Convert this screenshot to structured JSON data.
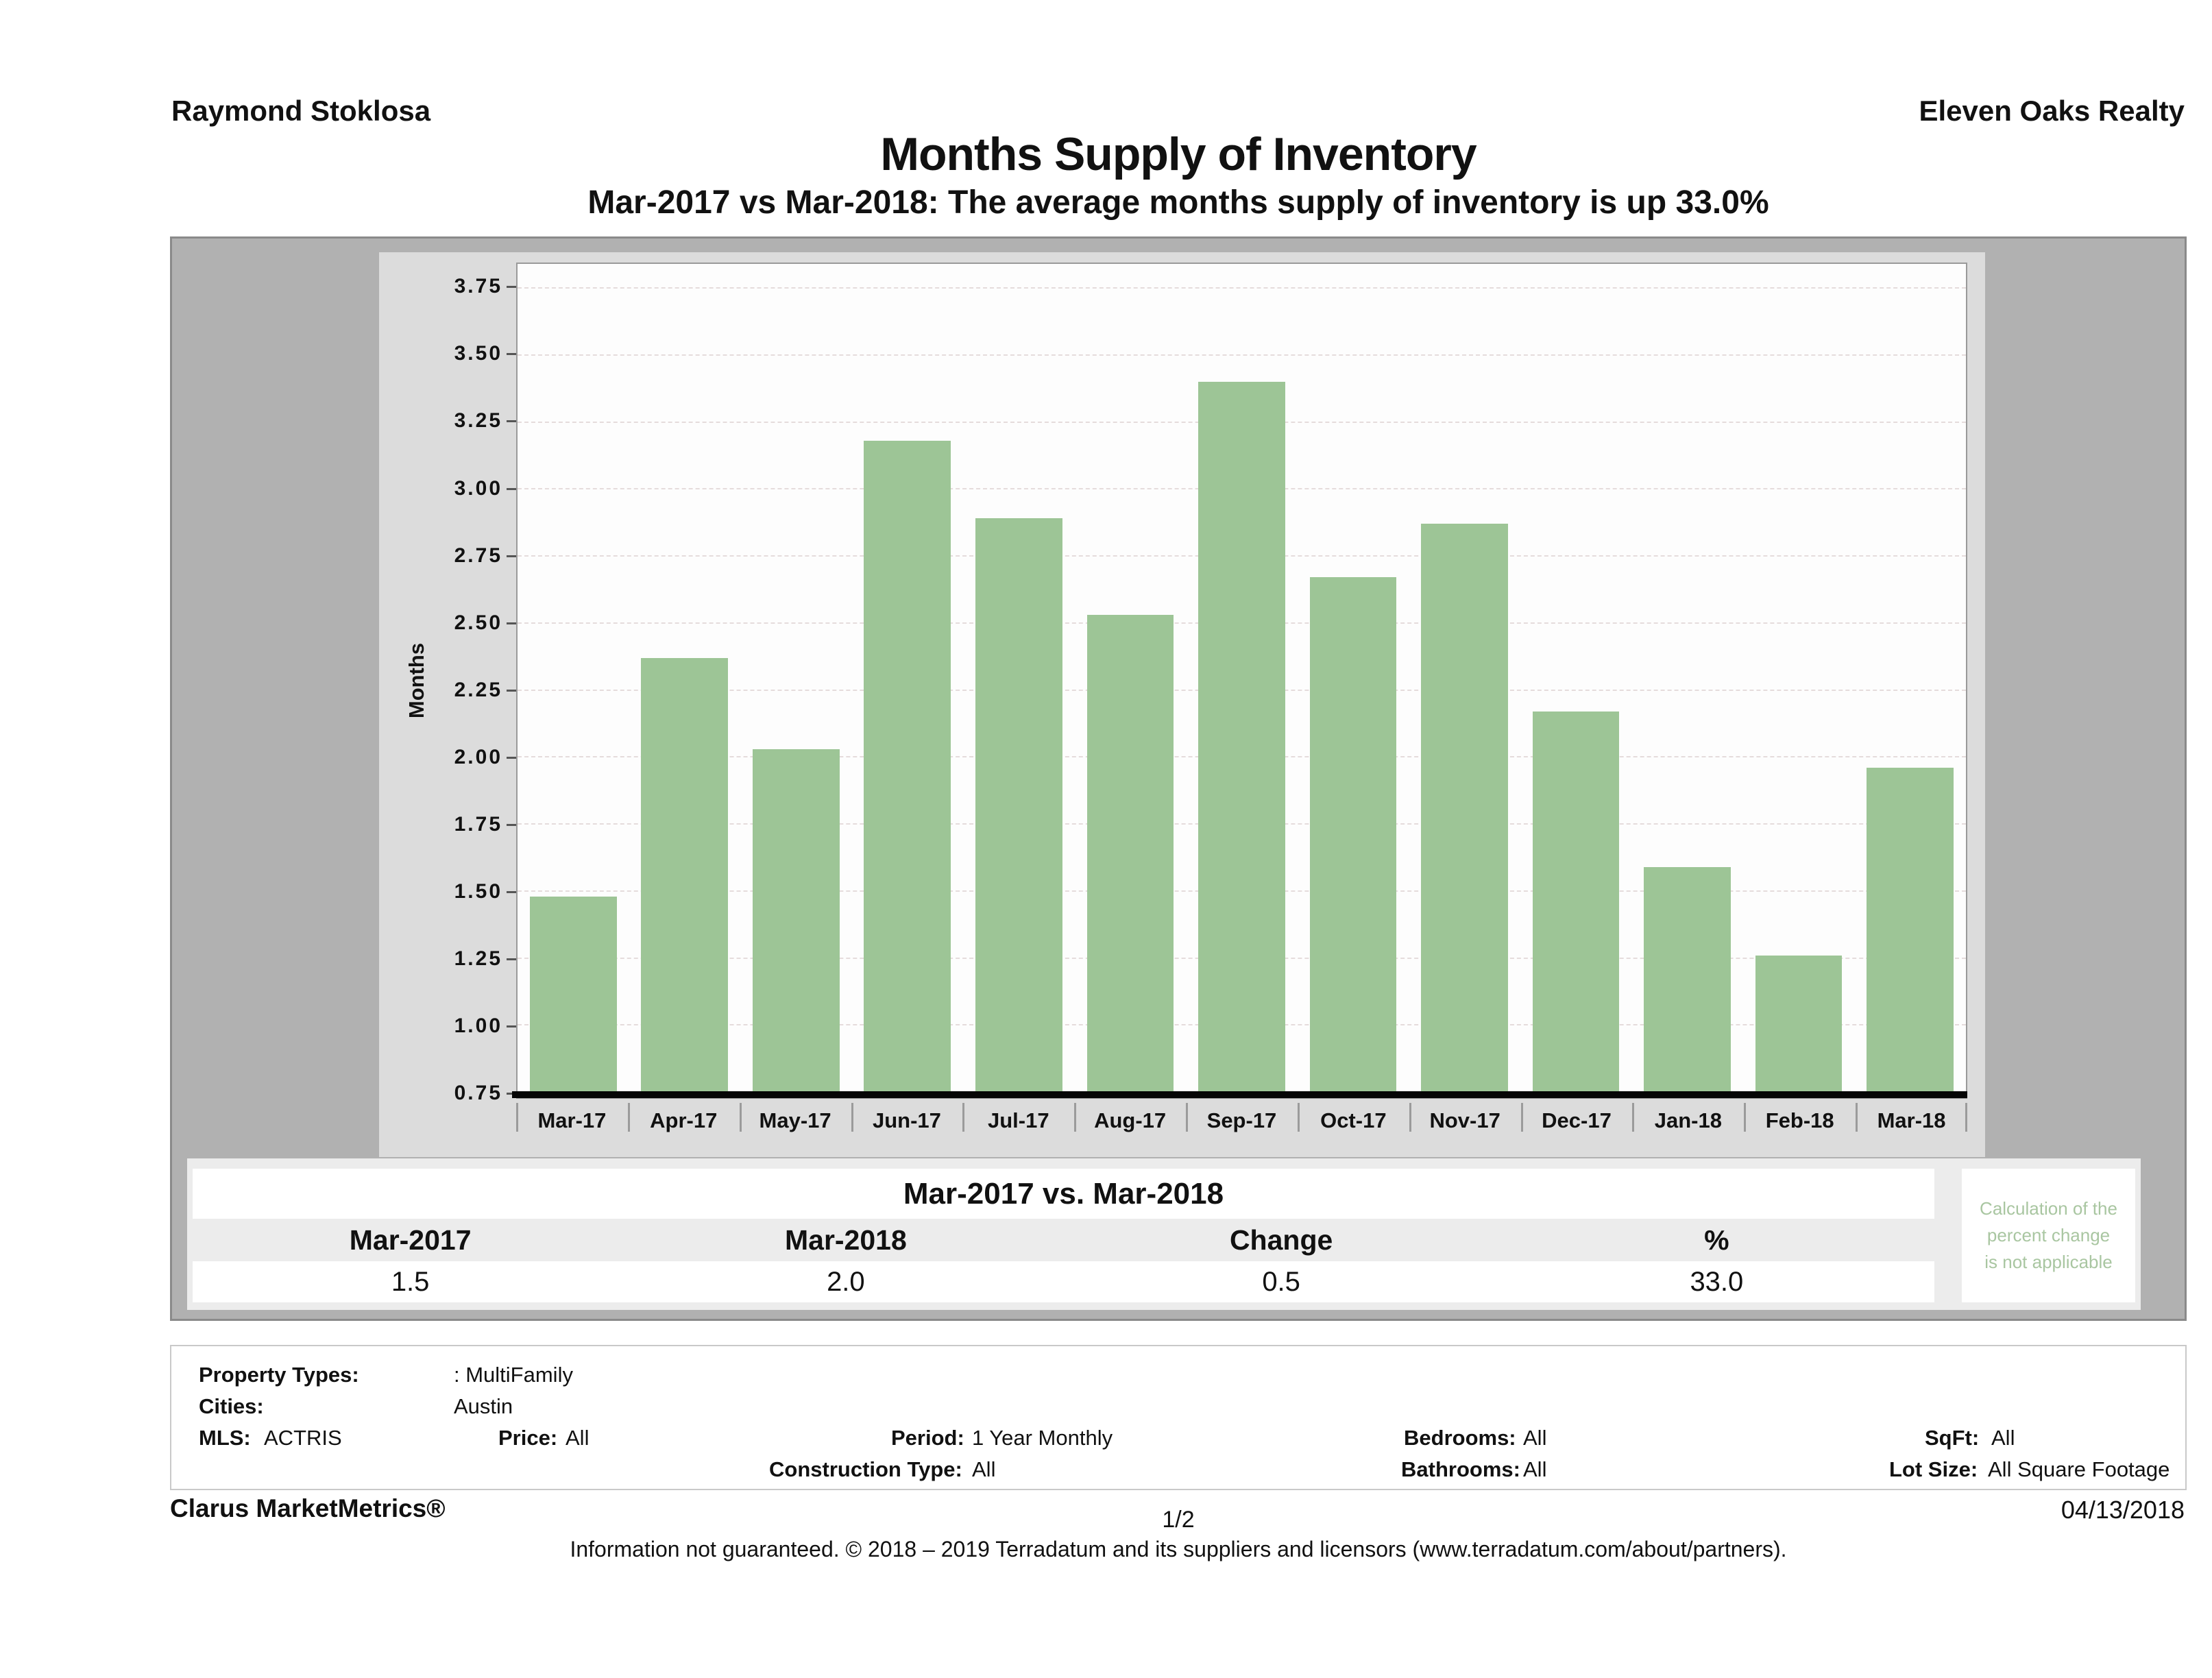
{
  "header": {
    "agent": "Raymond Stoklosa",
    "company": "Eleven Oaks Realty"
  },
  "title": "Months Supply of Inventory",
  "subtitle": "Mar-2017 vs Mar-2018: The average months supply of inventory is up 33.0%",
  "chart_data": {
    "type": "bar",
    "title": "Months Supply of Inventory",
    "xlabel": "",
    "ylabel": "Months",
    "categories": [
      "Mar-17",
      "Apr-17",
      "May-17",
      "Jun-17",
      "Jul-17",
      "Aug-17",
      "Sep-17",
      "Oct-17",
      "Nov-17",
      "Dec-17",
      "Jan-18",
      "Feb-18",
      "Mar-18"
    ],
    "values": [
      1.48,
      2.37,
      2.03,
      3.18,
      2.89,
      2.53,
      3.4,
      2.67,
      2.87,
      2.17,
      1.59,
      1.26,
      1.96
    ],
    "yticks": [
      0.75,
      1.0,
      1.25,
      1.5,
      1.75,
      2.0,
      2.25,
      2.5,
      2.75,
      3.0,
      3.25,
      3.5,
      3.75
    ],
    "ylim": [
      0.73,
      3.84
    ],
    "grid": "horizontal-dashed",
    "legend_position": "none",
    "bar_color": "#9dc596"
  },
  "comparison_table": {
    "title": "Mar-2017 vs. Mar-2018",
    "columns": [
      "Mar-2017",
      "Mar-2018",
      "Change",
      "%"
    ],
    "values": [
      "1.5",
      "2.0",
      "0.5",
      "33.0"
    ],
    "note_lines": [
      "Calculation of the",
      "percent change",
      "is not applicable"
    ]
  },
  "filters": {
    "property_types_label": "Property Types:",
    "property_types_value": ": MultiFamily",
    "cities_label": "Cities:",
    "cities_value": "Austin",
    "mls_label": "MLS:",
    "mls_value": "ACTRIS",
    "price_label": "Price:",
    "price_value": "All",
    "period_label": "Period:",
    "period_value": "1 Year Monthly",
    "bedrooms_label": "Bedrooms:",
    "bedrooms_value": "All",
    "sqft_label": "SqFt:",
    "sqft_value": "All",
    "construction_label": "Construction Type:",
    "construction_value": "All",
    "bathrooms_label": "Bathrooms:",
    "bathrooms_value": "All",
    "lot_size_label": "Lot Size:",
    "lot_size_value": "All Square Footage"
  },
  "footer": {
    "brand": "Clarus MarketMetrics®",
    "page": "1/2",
    "date": "04/13/2018",
    "disclaimer": "Information not guaranteed. © 2018 – 2019 Terradatum and its suppliers and licensors (www.terradatum.com/about/partners)."
  },
  "colors": {
    "bar": "#9dc596",
    "container_bg": "#b1b1b1",
    "inner_panel_bg": "#dcdcdc",
    "table_panel_bg": "#ececec",
    "note_green": "#a9c6a1",
    "axis": "#060606"
  }
}
